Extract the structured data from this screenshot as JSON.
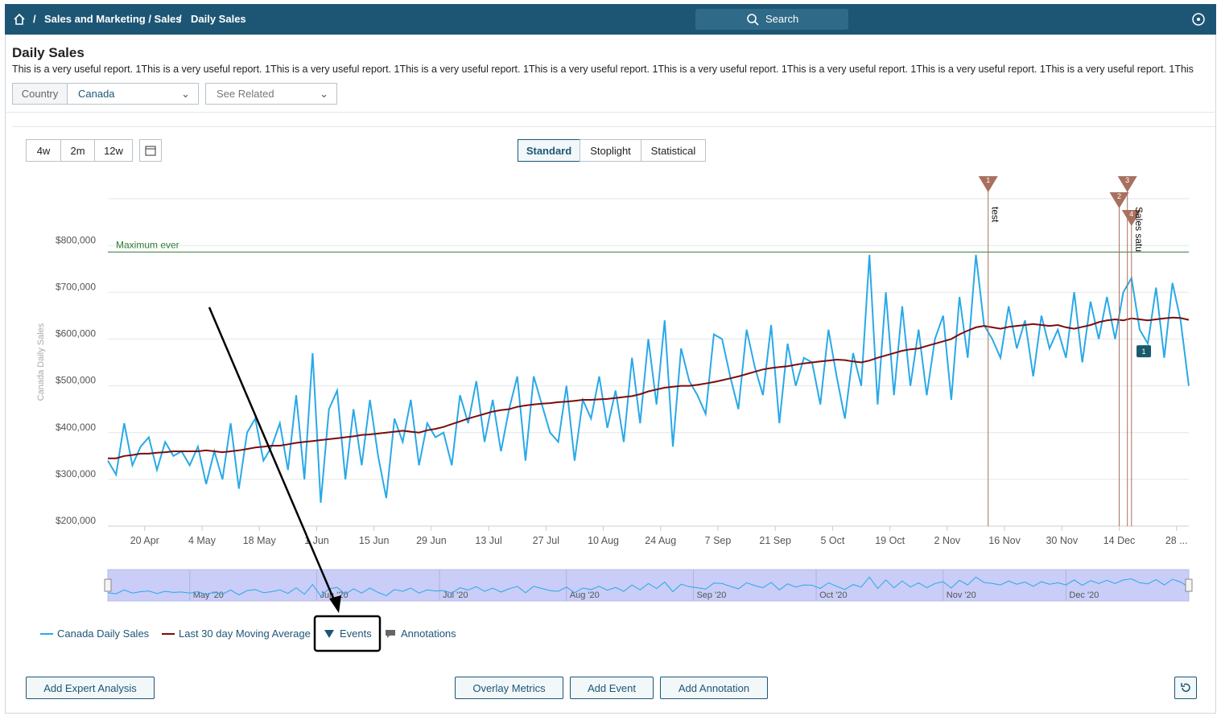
{
  "header": {
    "breadcrumb": [
      "Sales and Marketing / Sales",
      "Daily Sales"
    ],
    "separator": "/",
    "search": "Search"
  },
  "page": {
    "title": "Daily Sales",
    "description": "This is a very useful report. 1This is a very useful report. 1This is a very useful report. 1This is a very useful report. 1This is a very useful report. 1This is a very useful report. 1This is a very useful report. 1This is a very useful report. 1This is a very useful report. 1This"
  },
  "filters": {
    "country_label": "Country",
    "country_value": "Canada",
    "related": "See Related"
  },
  "controls": {
    "ranges": [
      "4w",
      "2m",
      "12w"
    ],
    "views": [
      "Standard",
      "Stoplight",
      "Statistical"
    ]
  },
  "footer_buttons": {
    "left": "Add Expert Analysis",
    "center": [
      "Overlay Metrics",
      "Add Event",
      "Add Annotation"
    ]
  },
  "chart_data": {
    "type": "line",
    "ylabel": "Canada Daily Sales",
    "x": [
      "2020-04-11",
      "2020-04-13",
      "2020-04-15",
      "2020-04-17",
      "2020-04-19",
      "2020-04-21",
      "2020-04-23",
      "2020-04-25",
      "2020-04-27",
      "2020-04-29",
      "2020-05-01",
      "2020-05-03",
      "2020-05-05",
      "2020-05-07",
      "2020-05-09",
      "2020-05-11",
      "2020-05-13",
      "2020-05-15",
      "2020-05-17",
      "2020-05-19",
      "2020-05-21",
      "2020-05-23",
      "2020-05-25",
      "2020-05-27",
      "2020-05-29",
      "2020-05-31",
      "2020-06-02",
      "2020-06-04",
      "2020-06-06",
      "2020-06-08",
      "2020-06-10",
      "2020-06-12",
      "2020-06-14",
      "2020-06-16",
      "2020-06-18",
      "2020-06-20",
      "2020-06-22",
      "2020-06-24",
      "2020-06-26",
      "2020-06-28",
      "2020-06-30",
      "2020-07-02",
      "2020-07-04",
      "2020-07-06",
      "2020-07-08",
      "2020-07-10",
      "2020-07-12",
      "2020-07-14",
      "2020-07-16",
      "2020-07-18",
      "2020-07-20",
      "2020-07-22",
      "2020-07-24",
      "2020-07-26",
      "2020-07-28",
      "2020-07-30",
      "2020-08-01",
      "2020-08-03",
      "2020-08-05",
      "2020-08-07",
      "2020-08-09",
      "2020-08-11",
      "2020-08-13",
      "2020-08-15",
      "2020-08-17",
      "2020-08-19",
      "2020-08-21",
      "2020-08-23",
      "2020-08-25",
      "2020-08-27",
      "2020-08-29",
      "2020-08-31",
      "2020-09-02",
      "2020-09-04",
      "2020-09-06",
      "2020-09-08",
      "2020-09-10",
      "2020-09-12",
      "2020-09-14",
      "2020-09-16",
      "2020-09-18",
      "2020-09-20",
      "2020-09-22",
      "2020-09-24",
      "2020-09-26",
      "2020-09-28",
      "2020-09-30",
      "2020-10-02",
      "2020-10-04",
      "2020-10-06",
      "2020-10-08",
      "2020-10-10",
      "2020-10-12",
      "2020-10-14",
      "2020-10-16",
      "2020-10-18",
      "2020-10-20",
      "2020-10-22",
      "2020-10-24",
      "2020-10-26",
      "2020-10-28",
      "2020-10-30",
      "2020-11-01",
      "2020-11-03",
      "2020-11-05",
      "2020-11-07",
      "2020-11-09",
      "2020-11-11",
      "2020-11-13",
      "2020-11-15",
      "2020-11-17",
      "2020-11-19",
      "2020-11-21",
      "2020-11-23",
      "2020-11-25",
      "2020-11-27",
      "2020-11-29",
      "2020-12-01",
      "2020-12-03",
      "2020-12-05",
      "2020-12-07",
      "2020-12-09",
      "2020-12-11",
      "2020-12-13",
      "2020-12-15",
      "2020-12-17",
      "2020-12-19",
      "2020-12-21",
      "2020-12-23",
      "2020-12-25",
      "2020-12-27",
      "2020-12-29",
      "2020-12-31"
    ],
    "series": [
      {
        "name": "Canada Daily Sales",
        "color": "#29a9e8",
        "values": [
          340000,
          310000,
          420000,
          330000,
          370000,
          390000,
          320000,
          380000,
          350000,
          360000,
          330000,
          370000,
          290000,
          360000,
          300000,
          420000,
          280000,
          400000,
          430000,
          340000,
          370000,
          420000,
          320000,
          480000,
          300000,
          570000,
          250000,
          450000,
          490000,
          300000,
          450000,
          330000,
          470000,
          350000,
          260000,
          430000,
          380000,
          470000,
          330000,
          420000,
          390000,
          400000,
          330000,
          480000,
          420000,
          510000,
          380000,
          470000,
          360000,
          450000,
          520000,
          340000,
          520000,
          460000,
          400000,
          380000,
          500000,
          340000,
          470000,
          430000,
          520000,
          410000,
          490000,
          380000,
          560000,
          420000,
          600000,
          460000,
          640000,
          370000,
          580000,
          510000,
          480000,
          440000,
          610000,
          600000,
          520000,
          450000,
          620000,
          540000,
          480000,
          630000,
          420000,
          590000,
          500000,
          560000,
          550000,
          460000,
          620000,
          520000,
          430000,
          570000,
          500000,
          780000,
          460000,
          700000,
          480000,
          670000,
          500000,
          620000,
          480000,
          600000,
          650000,
          470000,
          690000,
          560000,
          780000,
          630000,
          600000,
          560000,
          670000,
          580000,
          640000,
          520000,
          650000,
          580000,
          620000,
          560000,
          700000,
          550000,
          680000,
          600000,
          690000,
          600000,
          700000,
          730000,
          620000,
          590000,
          710000,
          560000,
          720000,
          640000,
          500000
        ]
      },
      {
        "name": "Last 30 day Moving Average",
        "color": "#7b0c0c",
        "values": [
          345000,
          345000,
          350000,
          352000,
          355000,
          355000,
          357000,
          358000,
          360000,
          360000,
          360000,
          360000,
          362000,
          360000,
          358000,
          360000,
          362000,
          365000,
          368000,
          370000,
          372000,
          372000,
          375000,
          378000,
          380000,
          382000,
          384000,
          386000,
          388000,
          390000,
          392000,
          395000,
          396000,
          398000,
          400000,
          402000,
          404000,
          402000,
          400000,
          405000,
          408000,
          412000,
          418000,
          424000,
          430000,
          435000,
          440000,
          445000,
          448000,
          450000,
          455000,
          458000,
          460000,
          462000,
          463000,
          465000,
          466000,
          468000,
          470000,
          470000,
          471000,
          472000,
          474000,
          476000,
          478000,
          482000,
          488000,
          492000,
          496000,
          498000,
          500000,
          500000,
          502000,
          505000,
          508000,
          512000,
          516000,
          520000,
          525000,
          530000,
          535000,
          538000,
          540000,
          542000,
          545000,
          548000,
          550000,
          552000,
          554000,
          556000,
          555000,
          552000,
          550000,
          554000,
          560000,
          565000,
          570000,
          575000,
          578000,
          580000,
          585000,
          590000,
          595000,
          600000,
          610000,
          618000,
          625000,
          628000,
          625000,
          622000,
          626000,
          628000,
          630000,
          632000,
          630000,
          628000,
          630000,
          625000,
          622000,
          626000,
          630000,
          636000,
          640000,
          642000,
          640000,
          644000,
          642000,
          640000,
          642000,
          644000,
          646000,
          645000,
          641000
        ]
      }
    ],
    "xlim": [
      "2020-04-11",
      "2020-12-31"
    ],
    "xticks": [
      {
        "value": "2020-04-20",
        "label": "20 Apr"
      },
      {
        "value": "2020-05-04",
        "label": "4 May"
      },
      {
        "value": "2020-05-18",
        "label": "18 May"
      },
      {
        "value": "2020-06-01",
        "label": "1 Jun"
      },
      {
        "value": "2020-06-15",
        "label": "15 Jun"
      },
      {
        "value": "2020-06-29",
        "label": "29 Jun"
      },
      {
        "value": "2020-07-13",
        "label": "13 Jul"
      },
      {
        "value": "2020-07-27",
        "label": "27 Jul"
      },
      {
        "value": "2020-08-10",
        "label": "10 Aug"
      },
      {
        "value": "2020-08-24",
        "label": "24 Aug"
      },
      {
        "value": "2020-09-07",
        "label": "7 Sep"
      },
      {
        "value": "2020-09-21",
        "label": "21 Sep"
      },
      {
        "value": "2020-10-05",
        "label": "5 Oct"
      },
      {
        "value": "2020-10-19",
        "label": "19 Oct"
      },
      {
        "value": "2020-11-02",
        "label": "2 Nov"
      },
      {
        "value": "2020-11-16",
        "label": "16 Nov"
      },
      {
        "value": "2020-11-30",
        "label": "30 Nov"
      },
      {
        "value": "2020-12-14",
        "label": "14 Dec"
      },
      {
        "value": "2020-12-28",
        "label": "28 ..."
      }
    ],
    "ylim": [
      200000,
      900000
    ],
    "yticks": [
      {
        "value": 200000,
        "label": "$200,000"
      },
      {
        "value": 300000,
        "label": "$300,000"
      },
      {
        "value": 400000,
        "label": "$400,000"
      },
      {
        "value": 500000,
        "label": "$500,000"
      },
      {
        "value": 600000,
        "label": "$600,000"
      },
      {
        "value": 700000,
        "label": "$700,000"
      },
      {
        "value": 800000,
        "label": "$800,000"
      }
    ],
    "grid": true,
    "reference_line": {
      "label": "Maximum ever",
      "value": 786000,
      "color": "#2e7d32"
    },
    "events": [
      {
        "label": "1",
        "date": "2020-11-12",
        "name": "test"
      },
      {
        "label": "2",
        "date": "2020-12-14"
      },
      {
        "label": "3",
        "date": "2020-12-16"
      },
      {
        "label": "4",
        "date": "2020-12-17",
        "name": "Sales satu"
      }
    ],
    "event_color": "#a8705f",
    "annotations": [
      {
        "label": "1",
        "date": "2020-12-20",
        "value": 573000
      }
    ],
    "annotation_color": "#1b5a6e",
    "navigator_ticks": [
      {
        "value": "2020-05-01",
        "label": "May '20"
      },
      {
        "value": "2020-06-01",
        "label": "Jun '20"
      },
      {
        "value": "2020-07-01",
        "label": "Jul '20"
      },
      {
        "value": "2020-08-01",
        "label": "Aug '20"
      },
      {
        "value": "2020-09-01",
        "label": "Sep '20"
      },
      {
        "value": "2020-10-01",
        "label": "Oct '20"
      },
      {
        "value": "2020-11-01",
        "label": "Nov '20"
      },
      {
        "value": "2020-12-01",
        "label": "Dec '20"
      }
    ],
    "legend_extra": [
      "Events",
      "Annotations"
    ]
  }
}
